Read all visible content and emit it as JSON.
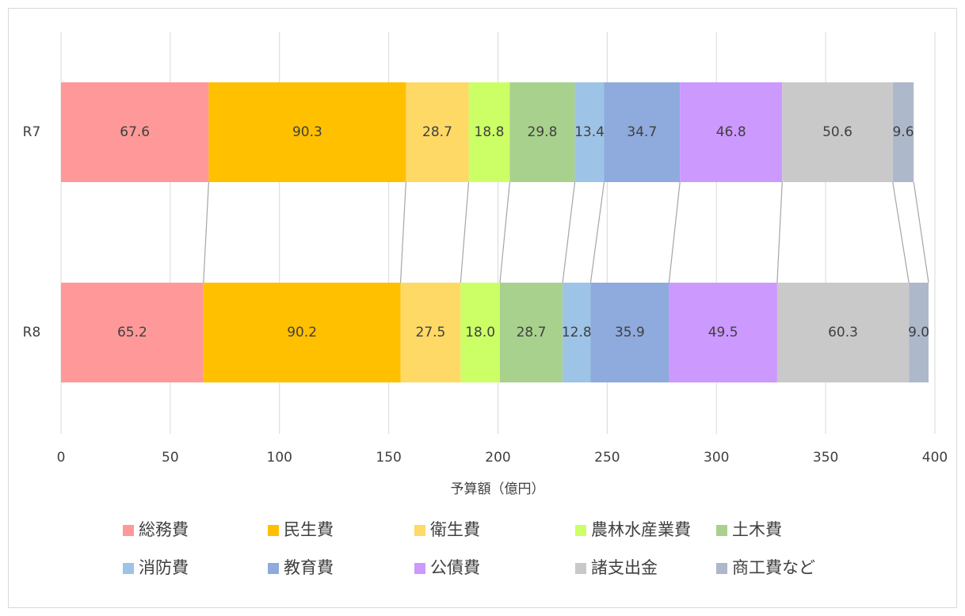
{
  "chart_data": {
    "type": "stacked-bar-horizontal",
    "x_label": "予算額（億円）",
    "categories": [
      "R7",
      "R8"
    ],
    "xlim": [
      0,
      400
    ],
    "xticks": [
      0,
      50,
      100,
      150,
      200,
      250,
      300,
      350,
      400
    ],
    "grid": true,
    "legend": "bottom",
    "series": [
      {
        "name": "総務費",
        "color": "#ff9999",
        "values": [
          67.6,
          65.2
        ],
        "value_labels": [
          "67.6",
          "65.2"
        ]
      },
      {
        "name": "民生費",
        "color": "#ffc000",
        "values": [
          90.3,
          90.2
        ],
        "value_labels": [
          "90.3",
          "90.2"
        ]
      },
      {
        "name": "衛生費",
        "color": "#ffd966",
        "values": [
          28.7,
          27.5
        ],
        "value_labels": [
          "28.7",
          "27.5"
        ]
      },
      {
        "name": "農林水産業費",
        "color": "#ccff66",
        "values": [
          18.8,
          18
        ],
        "value_labels": [
          "18.8",
          "18.0"
        ]
      },
      {
        "name": "土木費",
        "color": "#a9d18e",
        "values": [
          29.8,
          28.7
        ],
        "value_labels": [
          "29.8",
          "28.7"
        ]
      },
      {
        "name": "消防費",
        "color": "#9dc3e6",
        "values": [
          13.4,
          12.8
        ],
        "value_labels": [
          "13.4",
          "12.8"
        ]
      },
      {
        "name": "教育費",
        "color": "#8faadc",
        "values": [
          34.7,
          35.9
        ],
        "value_labels": [
          "34.7",
          "35.9"
        ]
      },
      {
        "name": "公債費",
        "color": "#cc99ff",
        "values": [
          46.8,
          49.5
        ],
        "value_labels": [
          "46.8",
          "49.5"
        ]
      },
      {
        "name": "諸支出金",
        "color": "#c9c9c9",
        "values": [
          50.6,
          60.3
        ],
        "value_labels": [
          "50.6",
          "60.3"
        ]
      },
      {
        "name": "商工費など",
        "color": "#adb9ca",
        "values": [
          9.6,
          9
        ],
        "value_labels": [
          "9.6",
          "9.0"
        ]
      }
    ]
  }
}
